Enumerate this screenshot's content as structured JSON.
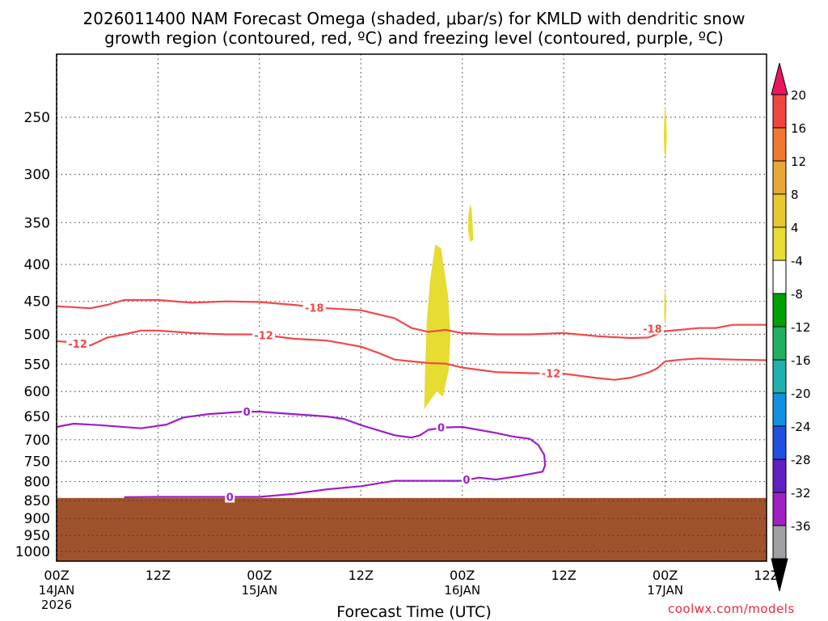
{
  "title_line1": "2026011400 NAM Forecast Omega (shaded, μbar/s) for KMLD with dendritic snow",
  "title_line2": "growth region (contoured, red, ºC) and freezing level (contoured, purple, ºC)",
  "credit": "coolwx.com/models",
  "chart_data": {
    "type": "contour",
    "title": "2026011400 NAM Forecast Omega (shaded, μbar/s) for KMLD with dendritic snow growth region (contoured, red, ºC) and freezing level (contoured, purple, ºC)",
    "xlabel": "Forecast Time (UTC)",
    "ylabel": "",
    "xlim": [
      0,
      84
    ],
    "ylim": [
      1000,
      200
    ],
    "y_scale": "log-pressure",
    "grid": true,
    "x_ticks": [
      {
        "hour": 0,
        "label": "00Z",
        "sub1": "14JAN",
        "sub2": "2026"
      },
      {
        "hour": 12,
        "label": "12Z",
        "sub1": "",
        "sub2": ""
      },
      {
        "hour": 24,
        "label": "00Z",
        "sub1": "15JAN",
        "sub2": ""
      },
      {
        "hour": 36,
        "label": "12Z",
        "sub1": "",
        "sub2": ""
      },
      {
        "hour": 48,
        "label": "00Z",
        "sub1": "16JAN",
        "sub2": ""
      },
      {
        "hour": 60,
        "label": "12Z",
        "sub1": "",
        "sub2": ""
      },
      {
        "hour": 72,
        "label": "00Z",
        "sub1": "17JAN",
        "sub2": ""
      },
      {
        "hour": 84,
        "label": "12Z",
        "sub1": "",
        "sub2": ""
      }
    ],
    "y_ticks": [
      250,
      300,
      350,
      400,
      450,
      500,
      550,
      600,
      650,
      700,
      750,
      800,
      850,
      900,
      950,
      1000
    ],
    "ground_pressure": 843,
    "ground_color": "#a0522d",
    "colorbar": {
      "levels": [
        20,
        16,
        12,
        8,
        4,
        -4,
        -8,
        -12,
        -16,
        -20,
        -24,
        -28,
        -32,
        -36
      ],
      "colors": [
        "#e8175d",
        "#f0463c",
        "#f07830",
        "#e8a838",
        "#e8c830",
        "#e6dc32",
        "#ffffff",
        "#00a000",
        "#20b060",
        "#20b0b0",
        "#1090e0",
        "#2050e0",
        "#6020c0",
        "#a020c0",
        "#a0a0a0",
        "#000000"
      ]
    },
    "series": [
      {
        "name": "-18",
        "color": "#f04848",
        "points": [
          [
            0,
            457
          ],
          [
            4,
            460
          ],
          [
            6,
            455
          ],
          [
            8,
            448
          ],
          [
            10,
            448
          ],
          [
            12,
            448
          ],
          [
            16,
            452
          ],
          [
            20,
            450
          ],
          [
            24,
            451
          ],
          [
            28,
            455
          ],
          [
            32,
            460
          ],
          [
            36,
            463
          ],
          [
            40,
            475
          ],
          [
            42,
            490
          ],
          [
            44,
            496
          ],
          [
            46,
            493
          ],
          [
            48,
            498
          ],
          [
            52,
            500
          ],
          [
            56,
            500
          ],
          [
            60,
            498
          ],
          [
            64,
            503
          ],
          [
            68,
            506
          ],
          [
            70,
            505
          ],
          [
            72,
            495
          ],
          [
            76,
            490
          ],
          [
            78,
            490
          ],
          [
            80,
            485
          ],
          [
            84,
            485
          ]
        ],
        "labels": [
          {
            "x": 30.5,
            "y": 459,
            "text": "-18"
          },
          {
            "x": 70.5,
            "y": 491,
            "text": "-18"
          }
        ]
      },
      {
        "name": "-12",
        "color": "#f04848",
        "points": [
          [
            0,
            511
          ],
          [
            2,
            513
          ],
          [
            4,
            518
          ],
          [
            6,
            505
          ],
          [
            8,
            500
          ],
          [
            10,
            494
          ],
          [
            12,
            494
          ],
          [
            16,
            498
          ],
          [
            20,
            500
          ],
          [
            24,
            500
          ],
          [
            28,
            507
          ],
          [
            32,
            510
          ],
          [
            36,
            520
          ],
          [
            38,
            530
          ],
          [
            40,
            542
          ],
          [
            42,
            545
          ],
          [
            44,
            548
          ],
          [
            46,
            549
          ],
          [
            48,
            556
          ],
          [
            50,
            560
          ],
          [
            52,
            564
          ],
          [
            56,
            566
          ],
          [
            60,
            567
          ],
          [
            64,
            575
          ],
          [
            66,
            578
          ],
          [
            68,
            574
          ],
          [
            70,
            565
          ],
          [
            71,
            558
          ],
          [
            72,
            545
          ],
          [
            74,
            542
          ],
          [
            76,
            540
          ],
          [
            80,
            542
          ],
          [
            84,
            543
          ]
        ],
        "labels": [
          {
            "x": 2.5,
            "y": 515,
            "text": "-12"
          },
          {
            "x": 24.5,
            "y": 501,
            "text": "-12"
          },
          {
            "x": 58.5,
            "y": 566,
            "text": "-12"
          }
        ]
      },
      {
        "name": "0",
        "color": "#9b1fc8",
        "points": [
          [
            0,
            672
          ],
          [
            2,
            665
          ],
          [
            5,
            668
          ],
          [
            10,
            675
          ],
          [
            13,
            667
          ],
          [
            15,
            652
          ],
          [
            18,
            645
          ],
          [
            22,
            640
          ],
          [
            24,
            640
          ],
          [
            28,
            645
          ],
          [
            32,
            650
          ],
          [
            34,
            655
          ],
          [
            36,
            668
          ],
          [
            40,
            690
          ],
          [
            42,
            695
          ],
          [
            43,
            690
          ],
          [
            44,
            678
          ],
          [
            46,
            673
          ],
          [
            48,
            672
          ],
          [
            52,
            685
          ],
          [
            54,
            693
          ],
          [
            56,
            698
          ],
          [
            57,
            712
          ],
          [
            57.7,
            735
          ],
          [
            57.8,
            760
          ],
          [
            57.5,
            775
          ],
          [
            55,
            785
          ],
          [
            52,
            795
          ],
          [
            50,
            790
          ],
          [
            48,
            798
          ],
          [
            44,
            798
          ],
          [
            40,
            798
          ],
          [
            36,
            812
          ],
          [
            32,
            820
          ],
          [
            28,
            832
          ],
          [
            24,
            840
          ],
          [
            20,
            840
          ],
          [
            16,
            840
          ],
          [
            12,
            840
          ],
          [
            8,
            841
          ]
        ],
        "labels": [
          {
            "x": 22.5,
            "y": 640,
            "text": "0"
          },
          {
            "x": 45.5,
            "y": 673,
            "text": "0"
          },
          {
            "x": 48.5,
            "y": 795,
            "text": "0"
          },
          {
            "x": 20.5,
            "y": 840,
            "text": "0"
          }
        ]
      }
    ],
    "shaded_regions": [
      {
        "value_range": [
          4,
          8
        ],
        "color": "#e6dc32",
        "points": [
          [
            43.5,
            630
          ],
          [
            43.6,
            560
          ],
          [
            43.8,
            480
          ],
          [
            44.2,
            420
          ],
          [
            44.8,
            375
          ],
          [
            45.5,
            380
          ],
          [
            46.3,
            440
          ],
          [
            46.6,
            500
          ],
          [
            46.4,
            560
          ],
          [
            45.7,
            610
          ],
          [
            45,
            600
          ],
          [
            44.3,
            615
          ],
          [
            43.5,
            635
          ]
        ]
      },
      {
        "value_range": [
          4,
          8
        ],
        "color": "#e6dc32",
        "points": [
          [
            48.7,
            345
          ],
          [
            48.9,
            330
          ],
          [
            49.1,
            335
          ],
          [
            49.2,
            348
          ],
          [
            49.3,
            370
          ],
          [
            48.9,
            372
          ],
          [
            48.7,
            360
          ]
        ]
      },
      {
        "value_range": [
          4,
          8
        ],
        "color": "#e6dc32",
        "points": [
          [
            71.9,
            250
          ],
          [
            72,
            240
          ],
          [
            72.1,
            245
          ],
          [
            72.2,
            265
          ],
          [
            72.1,
            285
          ],
          [
            71.9,
            280
          ],
          [
            71.85,
            265
          ]
        ]
      },
      {
        "value_range": [
          4,
          8
        ],
        "color": "#e6dc32",
        "points": [
          [
            71.9,
            448
          ],
          [
            72,
            430
          ],
          [
            72.1,
            440
          ],
          [
            72.15,
            460
          ],
          [
            72.05,
            485
          ],
          [
            71.9,
            475
          ]
        ]
      }
    ]
  }
}
